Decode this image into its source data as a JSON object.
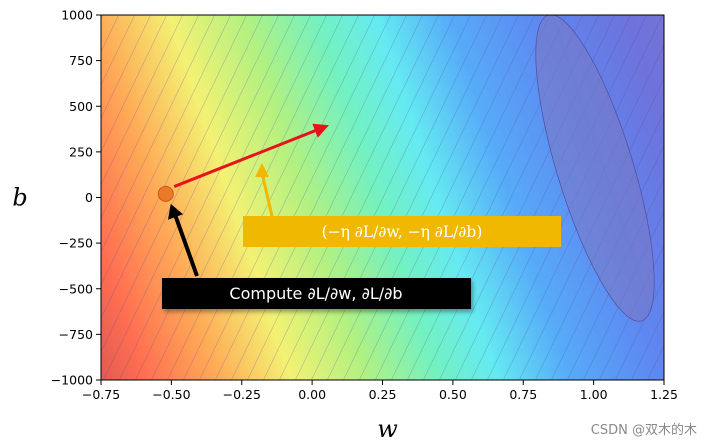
{
  "chart_data": {
    "type": "contour",
    "xlabel": "w",
    "ylabel": "b",
    "xlim": [
      -0.75,
      1.25
    ],
    "ylim": [
      -1000,
      1000
    ],
    "x_ticks": [
      "−0.75",
      "−0.50",
      "−0.25",
      "0.00",
      "0.25",
      "0.50",
      "0.75",
      "1.00",
      "1.25"
    ],
    "x_tick_values": [
      -0.75,
      -0.5,
      -0.25,
      0.0,
      0.25,
      0.5,
      0.75,
      1.0,
      1.25
    ],
    "y_ticks": [
      "1000",
      "750",
      "500",
      "250",
      "0",
      "−250",
      "−500",
      "−750",
      "−1000"
    ],
    "y_tick_values": [
      1000,
      750,
      500,
      250,
      0,
      -250,
      -500,
      -750,
      -1000
    ],
    "colormap": "jet_r",
    "grid": false,
    "point": {
      "w": -0.52,
      "b": 20,
      "color": "#ea7a2a"
    },
    "arrow": {
      "from": {
        "w": -0.49,
        "b": 60
      },
      "to": {
        "w": 0.05,
        "b": 390
      },
      "color": "#e8121c"
    },
    "annotations": {
      "update": {
        "text": "(−η ∂L/∂w, −η ∂L/∂b)",
        "bg": "#f0b800",
        "fg": "#ffffff"
      },
      "compute": {
        "text": "Compute ∂L/∂w, ∂L/∂b",
        "bg": "#000000",
        "fg": "#ffffff"
      }
    }
  },
  "watermark": "CSDN @双木的木"
}
